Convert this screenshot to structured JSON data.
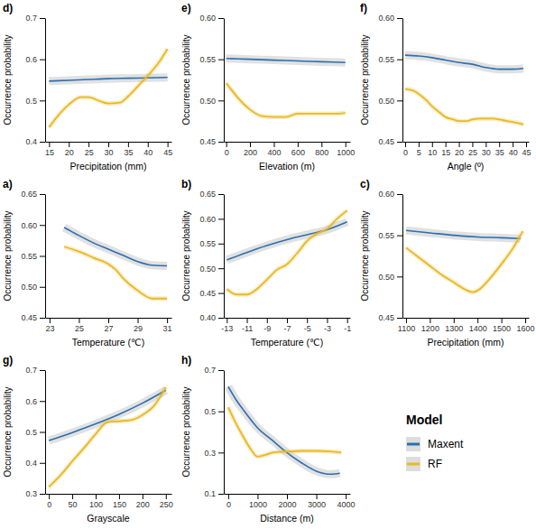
{
  "legend_title": "Model",
  "chart_data": [
    {
      "type": "line",
      "title": "d)",
      "x_label": "Precipitation (mm)",
      "y_label": "Occurrence probability",
      "xlim": [
        14,
        46
      ],
      "xticks": [
        15,
        20,
        25,
        30,
        35,
        40,
        45
      ],
      "ylim": [
        0.4,
        0.7
      ],
      "yticks": [
        0.4,
        0.5,
        0.6,
        0.7
      ],
      "series": [
        {
          "name": "Maxent",
          "color": "#2a6fb0",
          "x": [
            15,
            20,
            25,
            30,
            35,
            40,
            45
          ],
          "values": [
            0.547,
            0.549,
            0.551,
            0.553,
            0.554,
            0.555,
            0.556
          ]
        },
        {
          "name": "RF",
          "color": "#e8b923",
          "x": [
            15,
            17,
            20,
            23,
            25,
            28,
            30,
            33,
            35,
            38,
            40,
            43,
            45
          ],
          "values": [
            0.435,
            0.46,
            0.49,
            0.508,
            0.508,
            0.498,
            0.493,
            0.495,
            0.51,
            0.54,
            0.56,
            0.595,
            0.625
          ]
        }
      ]
    },
    {
      "type": "line",
      "title": "e)",
      "x_label": "Elevation (m)",
      "y_label": "Occurrence probability",
      "xlim": [
        -20,
        1040
      ],
      "xticks": [
        0,
        200,
        400,
        600,
        800,
        1000
      ],
      "ylim": [
        0.45,
        0.6
      ],
      "yticks": [
        0.45,
        {
          "value": 0.5,
          "label": "0.50"
        },
        0.55,
        {
          "value": 0.6,
          "label": "0.60"
        }
      ],
      "series": [
        {
          "name": "Maxent",
          "color": "#2a6fb0",
          "x": [
            0,
            200,
            400,
            600,
            800,
            1000
          ],
          "values": [
            0.551,
            0.55,
            0.549,
            0.548,
            0.547,
            0.546
          ]
        },
        {
          "name": "RF",
          "color": "#e8b923",
          "x": [
            0,
            50,
            100,
            200,
            300,
            400,
            500,
            600,
            700,
            800,
            900,
            1000
          ],
          "values": [
            0.521,
            0.512,
            0.503,
            0.489,
            0.481,
            0.48,
            0.48,
            0.484,
            0.484,
            0.484,
            0.484,
            0.485
          ]
        }
      ]
    },
    {
      "type": "line",
      "title": "f)",
      "x_label": "Angle (º)",
      "y_label": "Occurrence probability",
      "xlim": [
        -1,
        46
      ],
      "xticks": [
        0,
        5,
        10,
        15,
        20,
        25,
        30,
        35,
        40,
        45
      ],
      "ylim": [
        0.45,
        0.6
      ],
      "yticks": [
        0.45,
        {
          "value": 0.5,
          "label": "0.50"
        },
        0.55,
        {
          "value": 0.6,
          "label": "0.60"
        }
      ],
      "series": [
        {
          "name": "Maxent",
          "color": "#2a6fb0",
          "x": [
            0,
            5,
            10,
            15,
            20,
            25,
            30,
            35,
            40,
            44
          ],
          "values": [
            0.555,
            0.554,
            0.552,
            0.549,
            0.546,
            0.544,
            0.54,
            0.538,
            0.538,
            0.539
          ]
        },
        {
          "name": "RF",
          "color": "#e8b923",
          "x": [
            0,
            3,
            5,
            8,
            10,
            13,
            15,
            18,
            20,
            23,
            25,
            28,
            30,
            33,
            35,
            38,
            40,
            44
          ],
          "values": [
            0.514,
            0.512,
            0.508,
            0.5,
            0.493,
            0.485,
            0.48,
            0.477,
            0.475,
            0.475,
            0.477,
            0.478,
            0.478,
            0.478,
            0.477,
            0.475,
            0.474,
            0.471
          ]
        }
      ]
    },
    {
      "type": "line",
      "title": "a)",
      "x_label": "Temperature (℃)",
      "y_label": "Occurrence probability",
      "xlim": [
        22.7,
        31.3
      ],
      "xticks": [
        23,
        25,
        27,
        29,
        31
      ],
      "ylim": [
        0.45,
        0.65
      ],
      "yticks": [
        0.45,
        {
          "value": 0.5,
          "label": "0.50"
        },
        0.55,
        {
          "value": 0.6,
          "label": "0.60"
        },
        0.65
      ],
      "series": [
        {
          "name": "Maxent",
          "color": "#2a6fb0",
          "x": [
            24,
            25,
            26,
            27,
            28,
            29,
            30,
            31
          ],
          "values": [
            0.596,
            0.583,
            0.571,
            0.561,
            0.551,
            0.541,
            0.535,
            0.534
          ]
        },
        {
          "name": "RF",
          "color": "#e8b923",
          "x": [
            24,
            25,
            26,
            27,
            27.5,
            28,
            29,
            30,
            31
          ],
          "values": [
            0.565,
            0.557,
            0.547,
            0.537,
            0.528,
            0.514,
            0.494,
            0.481,
            0.481
          ]
        }
      ]
    },
    {
      "type": "line",
      "title": "b)",
      "x_label": "Temperature (℃)",
      "y_label": "Occurrence probability",
      "xlim": [
        -13.3,
        -0.7
      ],
      "xticks": [
        -13,
        -11,
        -9,
        -7,
        -5,
        -3,
        -1
      ],
      "ylim": [
        0.4,
        0.65
      ],
      "yticks": [
        {
          "value": 0.4,
          "label": "0.40"
        },
        0.45,
        {
          "value": 0.5,
          "label": "0.50"
        },
        0.55,
        {
          "value": 0.6,
          "label": "0.60"
        },
        0.65
      ],
      "series": [
        {
          "name": "Maxent",
          "color": "#2a6fb0",
          "x": [
            -13,
            -11,
            -9,
            -7,
            -5,
            -3,
            -1
          ],
          "values": [
            0.517,
            0.532,
            0.546,
            0.558,
            0.568,
            0.578,
            0.594
          ]
        },
        {
          "name": "RF",
          "color": "#e8b923",
          "x": [
            -13,
            -12,
            -11,
            -10,
            -9,
            -8,
            -7,
            -6,
            -5,
            -4,
            -3,
            -2,
            -1
          ],
          "values": [
            0.458,
            0.447,
            0.447,
            0.458,
            0.477,
            0.497,
            0.508,
            0.53,
            0.555,
            0.57,
            0.58,
            0.6,
            0.617
          ]
        }
      ]
    },
    {
      "type": "line",
      "title": "c)",
      "x_label": "Precipitation (mm)",
      "y_label": "Occurrence probability",
      "xlim": [
        1085,
        1615
      ],
      "xticks": [
        1100,
        1200,
        1300,
        1400,
        1500,
        1600
      ],
      "ylim": [
        0.45,
        0.6
      ],
      "yticks": [
        0.45,
        {
          "value": 0.5,
          "label": "0.50"
        },
        0.55,
        {
          "value": 0.6,
          "label": "0.60"
        }
      ],
      "series": [
        {
          "name": "Maxent",
          "color": "#2a6fb0",
          "x": [
            1100,
            1200,
            1300,
            1400,
            1500,
            1580
          ],
          "values": [
            0.556,
            0.553,
            0.55,
            0.548,
            0.547,
            0.546
          ]
        },
        {
          "name": "RF",
          "color": "#e8b923",
          "x": [
            1100,
            1150,
            1200,
            1250,
            1300,
            1350,
            1380,
            1400,
            1450,
            1500,
            1550,
            1590
          ],
          "values": [
            0.535,
            0.524,
            0.513,
            0.502,
            0.493,
            0.484,
            0.481,
            0.483,
            0.497,
            0.515,
            0.535,
            0.555
          ]
        }
      ]
    },
    {
      "type": "line",
      "title": "g)",
      "x_label": "Grayscale",
      "y_label": "Occurrence probability",
      "xlim": [
        -8,
        262
      ],
      "xticks": [
        0,
        50,
        100,
        150,
        200,
        250
      ],
      "ylim": [
        0.3,
        0.7
      ],
      "yticks": [
        0.3,
        0.4,
        0.5,
        0.6,
        0.7
      ],
      "series": [
        {
          "name": "Maxent",
          "color": "#2a6fb0",
          "x": [
            0,
            50,
            100,
            150,
            200,
            250
          ],
          "values": [
            0.472,
            0.498,
            0.526,
            0.557,
            0.593,
            0.635
          ]
        },
        {
          "name": "RF",
          "color": "#e8b923",
          "x": [
            0,
            25,
            50,
            75,
            100,
            125,
            150,
            175,
            200,
            225,
            250
          ],
          "values": [
            0.322,
            0.36,
            0.405,
            0.448,
            0.493,
            0.532,
            0.535,
            0.538,
            0.555,
            0.585,
            0.645
          ]
        }
      ]
    },
    {
      "type": "line",
      "title": "h)",
      "x_label": "Distance (m)",
      "y_label": "Occurrence probability",
      "xlim": [
        -150,
        4150
      ],
      "xticks": [
        0,
        1000,
        2000,
        3000,
        4000
      ],
      "ylim": [
        0.1,
        0.7
      ],
      "yticks": [
        0.1,
        0.3,
        0.5,
        0.7
      ],
      "series": [
        {
          "name": "Maxent",
          "color": "#2a6fb0",
          "x": [
            0,
            250,
            500,
            1000,
            1500,
            2000,
            2500,
            3000,
            3500,
            3800
          ],
          "values": [
            0.62,
            0.56,
            0.51,
            0.42,
            0.36,
            0.3,
            0.25,
            0.21,
            0.195,
            0.2
          ]
        },
        {
          "name": "RF",
          "color": "#e8b923",
          "x": [
            0,
            200,
            500,
            800,
            1000,
            1300,
            1500,
            2000,
            2500,
            3000,
            3500,
            3850
          ],
          "values": [
            0.52,
            0.46,
            0.38,
            0.31,
            0.28,
            0.29,
            0.3,
            0.305,
            0.308,
            0.308,
            0.305,
            0.3
          ]
        }
      ]
    }
  ]
}
